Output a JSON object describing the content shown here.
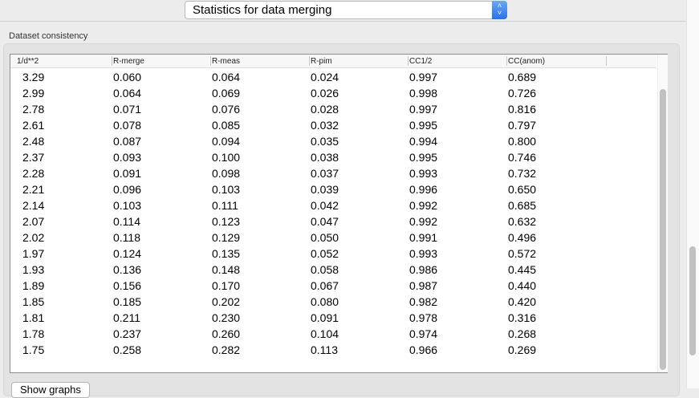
{
  "header": {
    "view_select": "Statistics for data merging"
  },
  "group": {
    "title": "Dataset consistency"
  },
  "table": {
    "columns": [
      "1/d**2",
      "R-merge",
      "R-meas",
      "R-pim",
      "CC1/2",
      "CC(anom)"
    ],
    "rows": [
      [
        "3.29",
        "0.060",
        "0.064",
        "0.024",
        "0.997",
        "0.689"
      ],
      [
        "2.99",
        "0.064",
        "0.069",
        "0.026",
        "0.998",
        "0.726"
      ],
      [
        "2.78",
        "0.071",
        "0.076",
        "0.028",
        "0.997",
        "0.816"
      ],
      [
        "2.61",
        "0.078",
        "0.085",
        "0.032",
        "0.995",
        "0.797"
      ],
      [
        "2.48",
        "0.087",
        "0.094",
        "0.035",
        "0.994",
        "0.800"
      ],
      [
        "2.37",
        "0.093",
        "0.100",
        "0.038",
        "0.995",
        "0.746"
      ],
      [
        "2.28",
        "0.091",
        "0.098",
        "0.037",
        "0.993",
        "0.732"
      ],
      [
        "2.21",
        "0.096",
        "0.103",
        "0.039",
        "0.996",
        "0.650"
      ],
      [
        "2.14",
        "0.103",
        "0.111",
        "0.042",
        "0.992",
        "0.685"
      ],
      [
        "2.07",
        "0.114",
        "0.123",
        "0.047",
        "0.992",
        "0.632"
      ],
      [
        "2.02",
        "0.118",
        "0.129",
        "0.050",
        "0.991",
        "0.496"
      ],
      [
        "1.97",
        "0.124",
        "0.135",
        "0.052",
        "0.993",
        "0.572"
      ],
      [
        "1.93",
        "0.136",
        "0.148",
        "0.058",
        "0.986",
        "0.445"
      ],
      [
        "1.89",
        "0.156",
        "0.170",
        "0.067",
        "0.987",
        "0.440"
      ],
      [
        "1.85",
        "0.185",
        "0.202",
        "0.080",
        "0.982",
        "0.420"
      ],
      [
        "1.81",
        "0.211",
        "0.230",
        "0.091",
        "0.978",
        "0.316"
      ],
      [
        "1.78",
        "0.237",
        "0.260",
        "0.104",
        "0.974",
        "0.268"
      ],
      [
        "1.75",
        "0.258",
        "0.282",
        "0.113",
        "0.966",
        "0.269"
      ]
    ]
  },
  "footer": {
    "show_graphs": "Show graphs"
  },
  "icons": {
    "select": "up-down-chevron-icon"
  },
  "colors": {
    "accent": "#2a72e8"
  }
}
